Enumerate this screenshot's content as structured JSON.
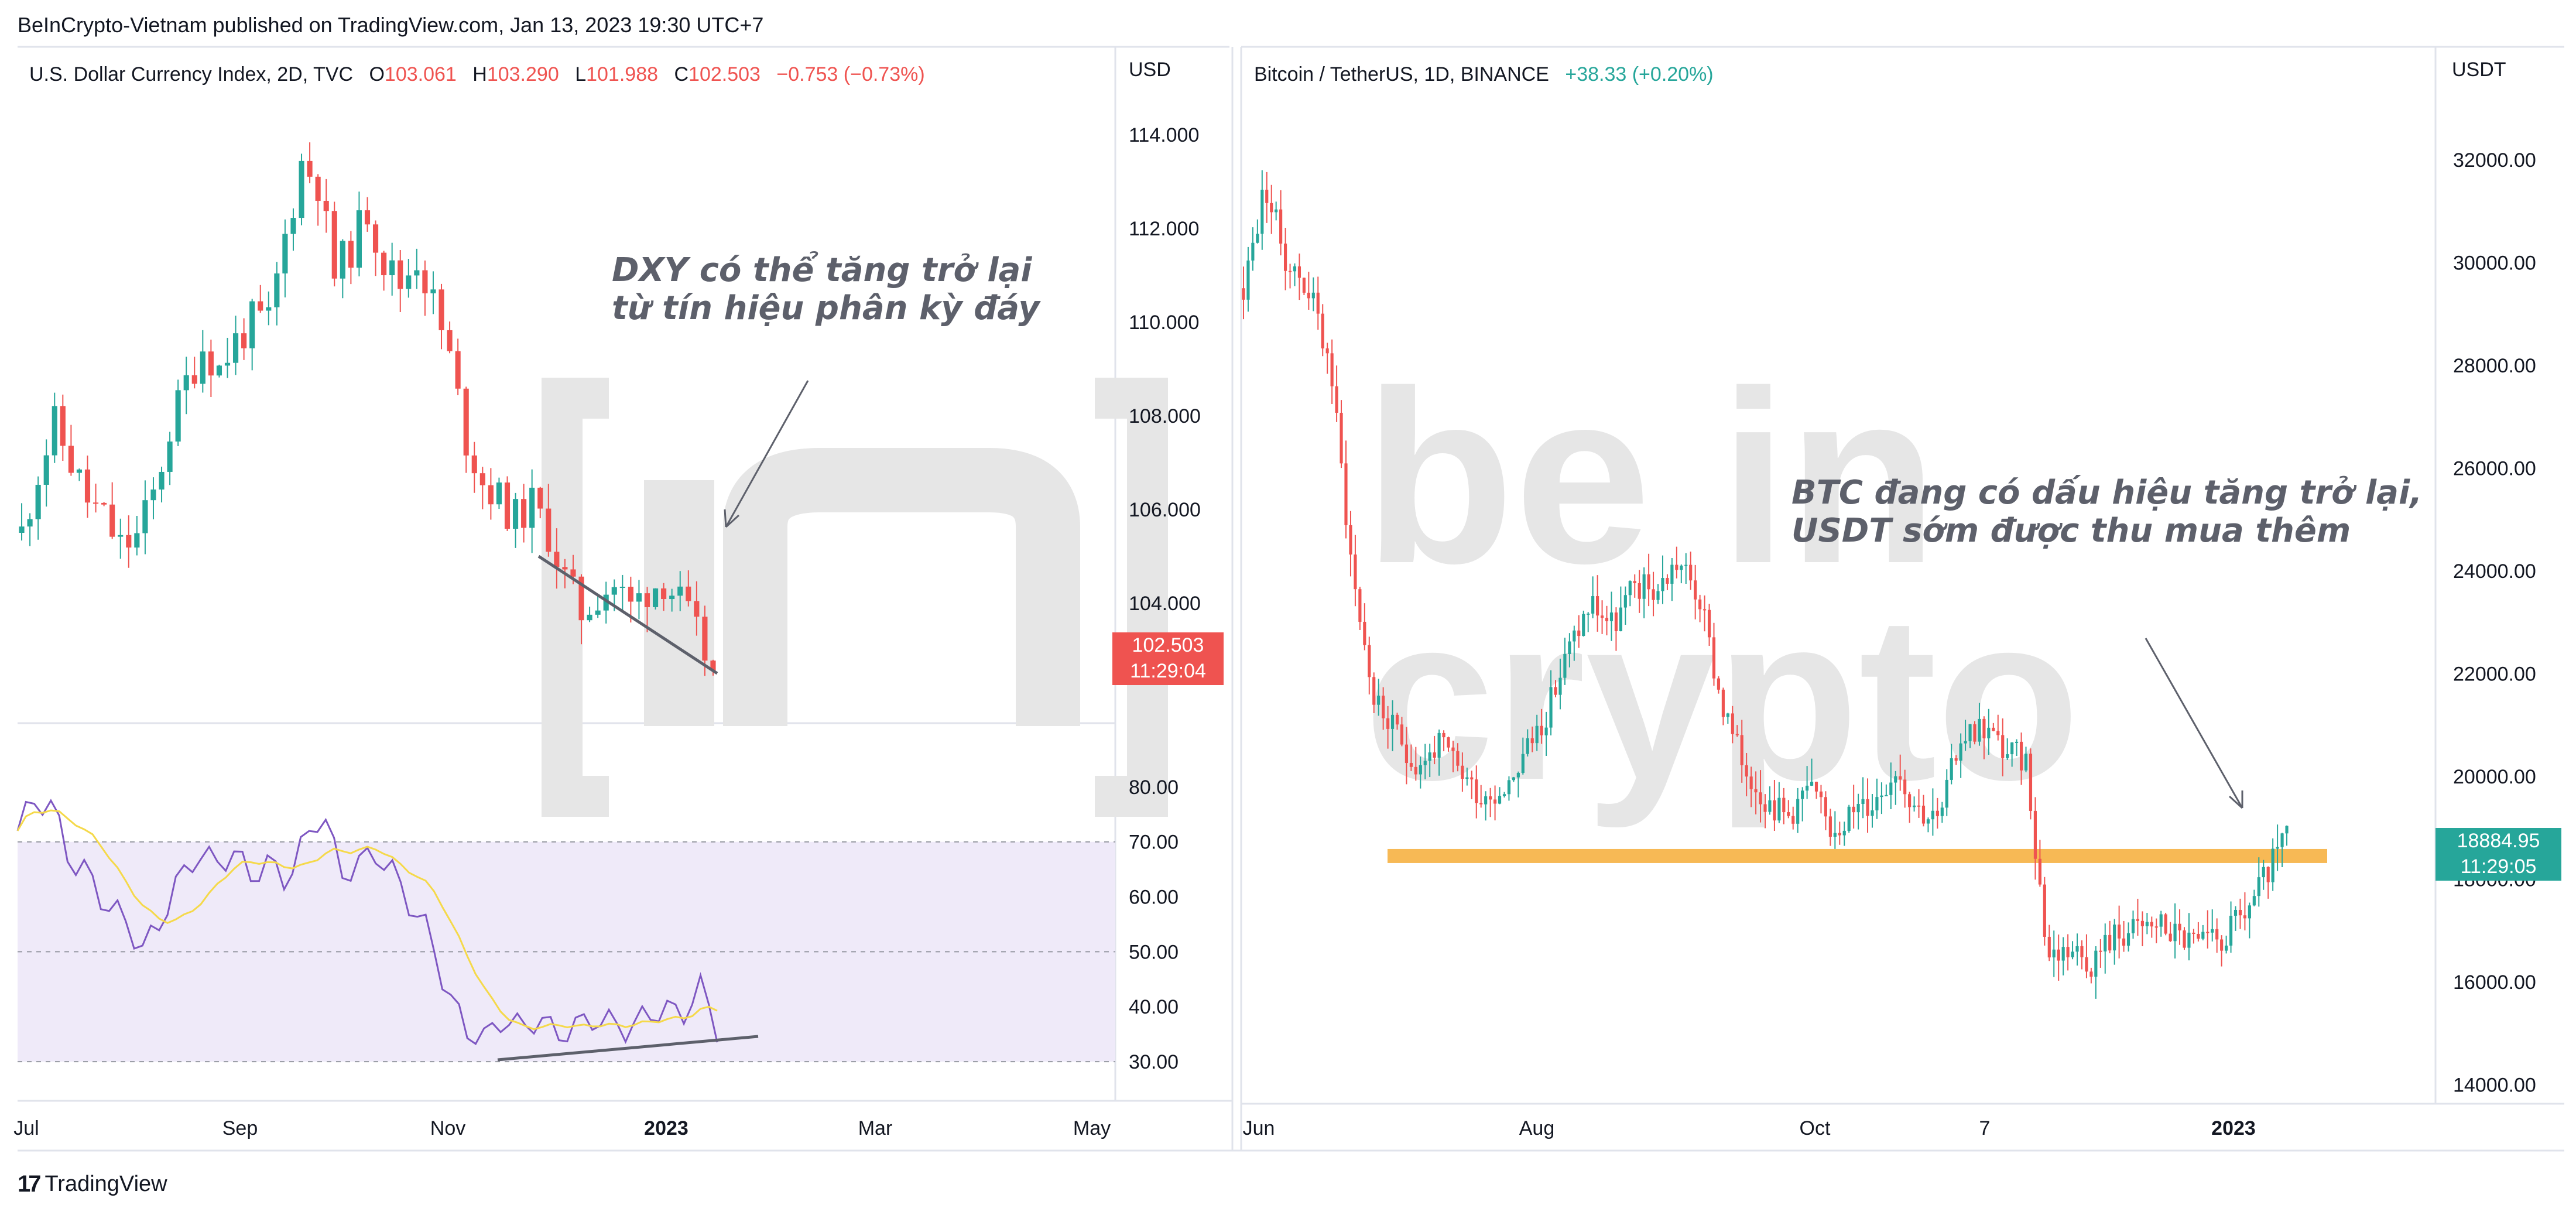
{
  "header": {
    "text": "BeInCrypto-Vietnam published on TradingView.com, Jan 13, 2023 19:30 UTC+7"
  },
  "footer": {
    "brand": "TradingView",
    "icon": "tradingview-logo-icon"
  },
  "watermark": {
    "line1": "be in",
    "line2": "crypto"
  },
  "colors": {
    "up": "#26a69a",
    "down": "#ef5350",
    "rsi": "#7e57c2",
    "rsi_ma": "#f5d94a",
    "support": "#f7b955",
    "rsi_band": "#efeaf9"
  },
  "left_chart": {
    "symbol": "U.S. Dollar Currency Index, 2D, TVC",
    "ohlc": {
      "o_label": "O",
      "o": "103.061",
      "h_label": "H",
      "h": "103.290",
      "l_label": "L",
      "l": "101.988",
      "c_label": "C",
      "c": "102.503",
      "change": "−0.753 (−0.73%)"
    },
    "currency": "USD",
    "price_tag": {
      "price": "102.503",
      "time": "11:29:04"
    },
    "annotation": [
      "DXY có thể tăng trở lại",
      "từ tín hiệu phân kỳ đáy"
    ]
  },
  "right_chart": {
    "symbol": "Bitcoin / TetherUS, 1D, BINANCE",
    "change": "+38.33 (+0.20%)",
    "currency": "USDT",
    "price_tag": {
      "price": "18884.95",
      "time": "11:29:05"
    },
    "annotation": [
      "BTC đang có dấu hiệu tăng trở lại,",
      "USDT sớm được thu mua thêm"
    ]
  },
  "chart_data": [
    {
      "type": "candlestick",
      "title": "U.S. Dollar Currency Index, 2D, TVC",
      "ylim": [
        101.5,
        115
      ],
      "y_ticks": [
        "114.000",
        "112.000",
        "110.000",
        "108.000",
        "106.000",
        "104.000"
      ],
      "x_ticks": [
        "Jul",
        "Sep",
        "Nov",
        "2023",
        "Mar",
        "May"
      ],
      "close_path": [
        105.5,
        106.8,
        107.8,
        107.0,
        106.2,
        105.8,
        105.2,
        105.4,
        106.3,
        107.7,
        108.7,
        109.5,
        109.0,
        109.6,
        110.0,
        110.0,
        111.8,
        113.4,
        113.0,
        111.0,
        111.6,
        112.4,
        111.3,
        110.8,
        111.4,
        110.4,
        109.2,
        107.5,
        106.6,
        106.2,
        105.8,
        106.1,
        105.5,
        104.5,
        103.8,
        104.2,
        104.4,
        103.9,
        104.3,
        104.5,
        104.0,
        103.3,
        102.5
      ],
      "rsi": {
        "ylim": [
          25,
          90
        ],
        "y_ticks": [
          "80.00",
          "70.00",
          "60.00",
          "50.00",
          "40.00",
          "30.00"
        ],
        "band": [
          30,
          70
        ],
        "mid": 50
      },
      "grid": false
    },
    {
      "type": "candlestick",
      "title": "Bitcoin / TetherUS, 1D, BINANCE",
      "ylim": [
        13800,
        33400
      ],
      "y_ticks": [
        "32000.00",
        "30000.00",
        "28000.00",
        "26000.00",
        "24000.00",
        "22000.00",
        "20000.00",
        "18000.00",
        "16000.00",
        "14000.00"
      ],
      "x_ticks": [
        "Jun",
        "Aug",
        "Oct",
        "7",
        "2023"
      ],
      "close_path": [
        29500,
        31500,
        30000,
        29500,
        28000,
        24000,
        21500,
        20800,
        20200,
        20600,
        20100,
        19600,
        19800,
        20500,
        21300,
        22500,
        23400,
        22900,
        23700,
        23600,
        24200,
        23400,
        21400,
        20200,
        19600,
        19200,
        19800,
        19000,
        19300,
        19500,
        20200,
        19400,
        19100,
        20800,
        21000,
        20500,
        20300,
        16500,
        16700,
        16400,
        16900,
        17000,
        17150,
        16900,
        16700,
        16800,
        17300,
        18000,
        18884.95
      ],
      "support_level": 18450,
      "grid": false
    }
  ]
}
